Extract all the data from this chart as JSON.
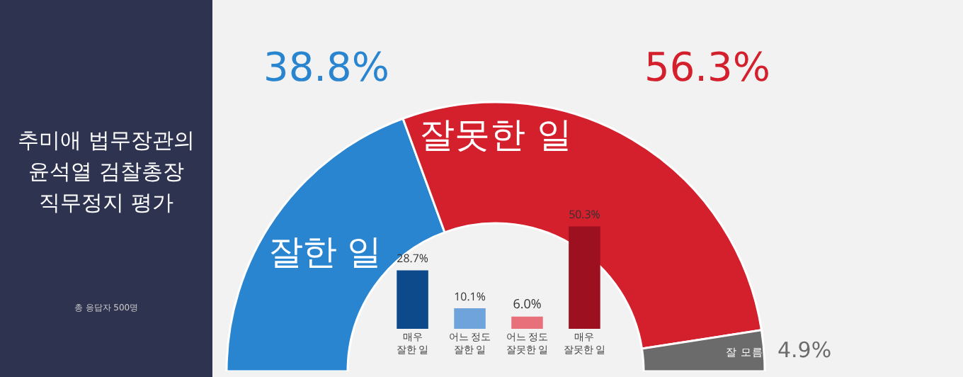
{
  "chart_data": [
    {
      "type": "donut",
      "title": "추미애 법무장관의\n윤석열 검찰총장\n직무정지 평가",
      "annotations": [
        "총 응답자 500명"
      ],
      "categories": [
        "잘한 일",
        "잘못한 일",
        "잘 모름"
      ],
      "values": [
        38.8,
        56.3,
        4.9
      ],
      "value_labels": [
        "38.8%",
        "56.3%",
        "4.9%"
      ],
      "colors": [
        "#2a85d0",
        "#d41f2c",
        "#6b6b6b"
      ],
      "legend": false
    },
    {
      "type": "bar",
      "categories": [
        "매우 잘한 일",
        "어느 정도 잘한 일",
        "어느 정도 잘못한 일",
        "매우 잘못한 일"
      ],
      "values": [
        28.7,
        10.1,
        6.0,
        50.3
      ],
      "value_labels": [
        "28.7%",
        "10.1%",
        "6.0%",
        "50.3%"
      ],
      "colors": [
        "#0d4a8c",
        "#6fa3dc",
        "#e8707a",
        "#9c1020"
      ],
      "legend": false
    }
  ]
}
